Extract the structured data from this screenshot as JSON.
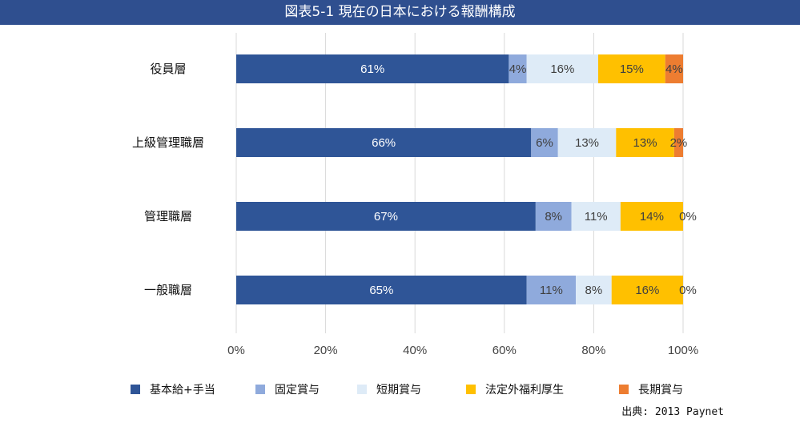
{
  "chart_data": {
    "type": "bar",
    "orientation": "horizontal",
    "stacked": true,
    "title": "図表5-1 現在の日本における報酬構成",
    "categories": [
      "役員層",
      "上級管理職層",
      "管理職層",
      "一般職層"
    ],
    "series": [
      {
        "name": "基本給+手当",
        "color": "#2f5597",
        "values": [
          61,
          66,
          67,
          65
        ],
        "labels": [
          "61%",
          "66%",
          "67%",
          "65%"
        ]
      },
      {
        "name": "固定賞与",
        "color": "#8faadc",
        "values": [
          4,
          6,
          8,
          11
        ],
        "labels": [
          "4%",
          "6%",
          "8%",
          "11%"
        ]
      },
      {
        "name": "短期賞与",
        "color": "#deebf7",
        "values": [
          16,
          13,
          11,
          8
        ],
        "labels": [
          "16%",
          "13%",
          "11%",
          "8%"
        ]
      },
      {
        "name": "法定外福利厚生",
        "color": "#ffc000",
        "values": [
          15,
          13,
          14,
          16
        ],
        "labels": [
          "15%",
          "13%",
          "14%",
          "16%"
        ]
      },
      {
        "name": "長期賞与",
        "color": "#ed7d31",
        "values": [
          4,
          2,
          0,
          0
        ],
        "labels": [
          "4%",
          "2%",
          "0%",
          "0%"
        ]
      }
    ],
    "x_ticks": [
      "0%",
      "20%",
      "40%",
      "60%",
      "80%",
      "100%"
    ],
    "xlim": [
      0,
      100
    ],
    "grid": "vertical",
    "legend_position": "bottom"
  },
  "source": "出典: 2013 Paynet"
}
